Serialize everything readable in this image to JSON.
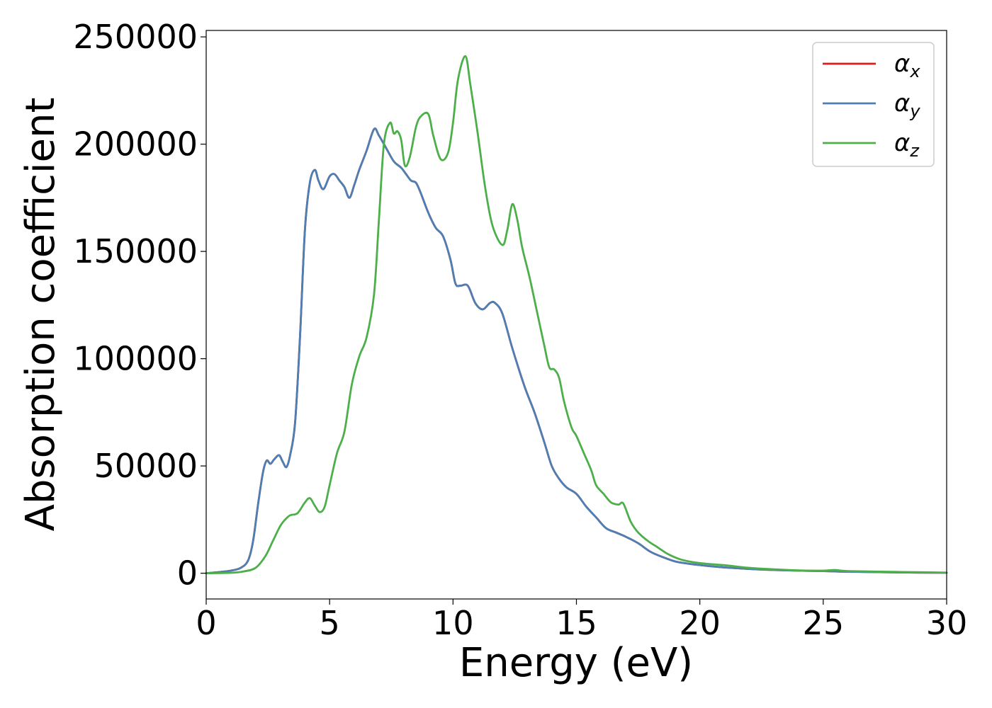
{
  "chart_data": {
    "type": "line",
    "title": "",
    "xlabel": "Energy (eV)",
    "ylabel": "Absorption coefficient",
    "xlim": [
      0,
      30
    ],
    "ylim": [
      -12000,
      253000
    ],
    "xticks": [
      "0",
      "5",
      "10",
      "15",
      "20",
      "25",
      "30"
    ],
    "yticks": [
      "0",
      "50000",
      "100000",
      "150000",
      "200000",
      "250000"
    ],
    "grid": false,
    "legend_position": "top-right",
    "series": [
      {
        "name": "α_x",
        "label_main": "α",
        "label_sub": "x",
        "color": "#e41a1c",
        "x": [
          0,
          0.5,
          1.0,
          1.4,
          1.7,
          1.9,
          2.1,
          2.3,
          2.45,
          2.6,
          2.75,
          2.95,
          3.1,
          3.25,
          3.4,
          3.6,
          3.8,
          4.0,
          4.2,
          4.4,
          4.55,
          4.75,
          5.0,
          5.2,
          5.4,
          5.6,
          5.8,
          6.0,
          6.2,
          6.5,
          6.8,
          7.0,
          7.3,
          7.6,
          7.9,
          8.1,
          8.3,
          8.5,
          8.7,
          9.0,
          9.3,
          9.6,
          9.9,
          10.1,
          10.3,
          10.6,
          10.9,
          11.2,
          11.5,
          11.7,
          12.0,
          12.4,
          12.9,
          13.3,
          13.7,
          14.0,
          14.3,
          14.6,
          15.0,
          15.4,
          15.8,
          16.2,
          16.6,
          17.0,
          17.5,
          18.0,
          18.5,
          19.0,
          19.5,
          20.0,
          20.5,
          21.0,
          22.0,
          23.0,
          24.0,
          25.0,
          26.0,
          28.0,
          30.0
        ],
        "y": [
          0,
          500,
          1200,
          2500,
          6000,
          15000,
          32000,
          47000,
          52500,
          51000,
          53000,
          55000,
          52000,
          49500,
          55000,
          70000,
          110000,
          160000,
          182000,
          188000,
          183000,
          179000,
          185000,
          186000,
          183000,
          180000,
          175000,
          181000,
          188000,
          197000,
          207000,
          204000,
          198000,
          192000,
          189000,
          186000,
          183000,
          182000,
          177000,
          168000,
          161000,
          157000,
          146000,
          135000,
          134000,
          134000,
          126000,
          123000,
          126000,
          126000,
          121000,
          105000,
          87000,
          75000,
          61000,
          50000,
          44000,
          40000,
          37000,
          31000,
          26000,
          21000,
          19000,
          17000,
          14000,
          10000,
          7500,
          5500,
          4500,
          3800,
          3200,
          2700,
          2000,
          1500,
          1200,
          1000,
          700,
          400,
          200
        ]
      },
      {
        "name": "α_y",
        "label_main": "α",
        "label_sub": "y",
        "color": "#4c7fb3",
        "x": [
          0,
          0.5,
          1.0,
          1.4,
          1.7,
          1.9,
          2.1,
          2.3,
          2.45,
          2.6,
          2.75,
          2.95,
          3.1,
          3.25,
          3.4,
          3.6,
          3.8,
          4.0,
          4.2,
          4.4,
          4.55,
          4.75,
          5.0,
          5.2,
          5.4,
          5.6,
          5.8,
          6.0,
          6.2,
          6.5,
          6.8,
          7.0,
          7.3,
          7.6,
          7.9,
          8.1,
          8.3,
          8.5,
          8.7,
          9.0,
          9.3,
          9.6,
          9.9,
          10.1,
          10.3,
          10.6,
          10.9,
          11.2,
          11.5,
          11.7,
          12.0,
          12.4,
          12.9,
          13.3,
          13.7,
          14.0,
          14.3,
          14.6,
          15.0,
          15.4,
          15.8,
          16.2,
          16.6,
          17.0,
          17.5,
          18.0,
          18.5,
          19.0,
          19.5,
          20.0,
          20.5,
          21.0,
          22.0,
          23.0,
          24.0,
          25.0,
          26.0,
          28.0,
          30.0
        ],
        "y": [
          0,
          500,
          1200,
          2500,
          6000,
          15000,
          32000,
          47000,
          52500,
          51000,
          53000,
          55000,
          52000,
          49500,
          55000,
          70000,
          110000,
          160000,
          182000,
          188000,
          183000,
          179000,
          185000,
          186000,
          183000,
          180000,
          175000,
          181000,
          188000,
          197000,
          207000,
          204000,
          198000,
          192000,
          189000,
          186000,
          183000,
          182000,
          177000,
          168000,
          161000,
          157000,
          146000,
          135000,
          134000,
          134000,
          126000,
          123000,
          126000,
          126000,
          121000,
          105000,
          87000,
          75000,
          61000,
          50000,
          44000,
          40000,
          37000,
          31000,
          26000,
          21000,
          19000,
          17000,
          14000,
          10000,
          7500,
          5500,
          4500,
          3800,
          3200,
          2700,
          2000,
          1500,
          1200,
          1000,
          700,
          400,
          200
        ]
      },
      {
        "name": "α_z",
        "label_main": "α",
        "label_sub": "z",
        "color": "#4daf4a",
        "x": [
          0,
          1.0,
          1.5,
          2.0,
          2.4,
          2.7,
          3.0,
          3.2,
          3.4,
          3.7,
          4.0,
          4.2,
          4.4,
          4.6,
          4.8,
          5.0,
          5.3,
          5.6,
          5.9,
          6.2,
          6.5,
          6.8,
          7.0,
          7.2,
          7.45,
          7.6,
          7.75,
          7.9,
          8.05,
          8.25,
          8.5,
          8.7,
          9.0,
          9.2,
          9.5,
          9.8,
          10.0,
          10.2,
          10.5,
          10.7,
          11.0,
          11.3,
          11.6,
          12.0,
          12.2,
          12.4,
          12.6,
          12.8,
          13.1,
          13.4,
          13.7,
          13.9,
          14.1,
          14.3,
          14.5,
          14.8,
          15.0,
          15.3,
          15.6,
          15.8,
          16.1,
          16.4,
          16.7,
          16.9,
          17.2,
          17.5,
          17.9,
          18.3,
          18.7,
          19.2,
          19.7,
          20.2,
          20.7,
          21.2,
          22.0,
          23.0,
          24.0,
          25.0,
          25.5,
          26.0,
          28.0,
          30.0
        ],
        "y": [
          0,
          200,
          800,
          2500,
          8000,
          15000,
          22000,
          25000,
          27000,
          28000,
          33000,
          35000,
          31500,
          28500,
          31000,
          41000,
          56000,
          66000,
          88000,
          101000,
          110000,
          130000,
          165000,
          200000,
          210000,
          205000,
          206000,
          202000,
          190000,
          194000,
          208000,
          213000,
          214000,
          204000,
          193000,
          196000,
          210000,
          230000,
          241000,
          228000,
          205000,
          180000,
          162000,
          153000,
          160000,
          172000,
          165000,
          152000,
          138000,
          122000,
          106000,
          96000,
          95000,
          91000,
          80000,
          68000,
          64000,
          56000,
          48000,
          41000,
          37000,
          33000,
          32000,
          32500,
          24000,
          19000,
          15000,
          12000,
          9000,
          6500,
          5200,
          4500,
          4000,
          3500,
          2500,
          1800,
          1300,
          1200,
          1500,
          1000,
          600,
          300
        ]
      }
    ]
  }
}
